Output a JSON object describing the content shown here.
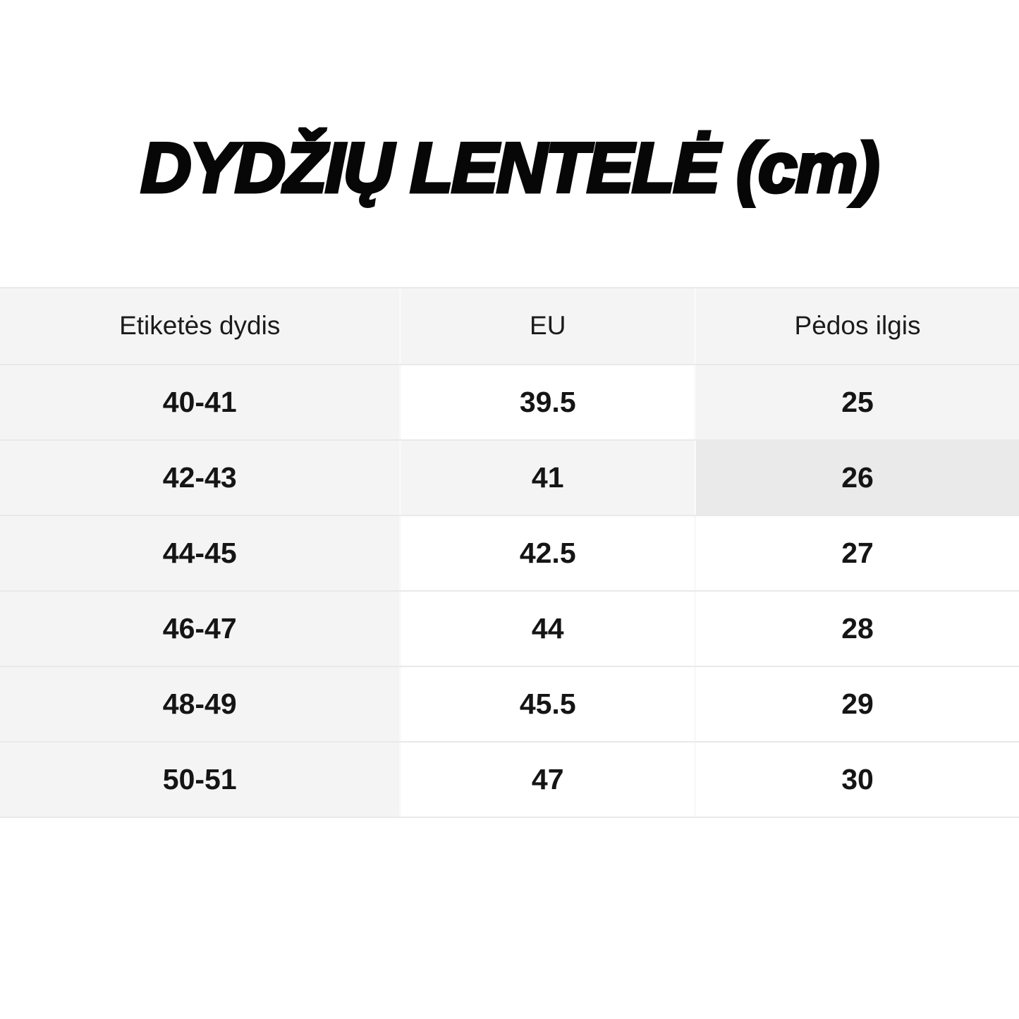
{
  "title": "DYDŽIŲ LENTELĖ (cm)",
  "colors": {
    "page_bg": "#ffffff",
    "header_bg": "#f4f4f4",
    "row_shade": "#f4f4f4",
    "highlight_cell_bg": "#eaeaea",
    "row_divider": "#e9e9e9",
    "column_divider": "#f9f9f9",
    "title_color": "#070707",
    "text_color": "#151515"
  },
  "table": {
    "headers": [
      "Etiketės dydis",
      "EU",
      "Pėdos ilgis"
    ],
    "rows": [
      [
        "40-41",
        "39.5",
        "25"
      ],
      [
        "42-43",
        "41",
        "26"
      ],
      [
        "44-45",
        "42.5",
        "27"
      ],
      [
        "46-47",
        "44",
        "28"
      ],
      [
        "48-49",
        "45.5",
        "29"
      ],
      [
        "50-51",
        "47",
        "30"
      ]
    ]
  },
  "chart_data": {
    "type": "table",
    "title": "DYDŽIŲ LENTELĖ (cm)",
    "columns": [
      "Etiketės dydis",
      "EU",
      "Pėdos ilgis"
    ],
    "rows": [
      {
        "label_size": "40-41",
        "eu": 39.5,
        "foot_length_cm": 25
      },
      {
        "label_size": "42-43",
        "eu": 41,
        "foot_length_cm": 26
      },
      {
        "label_size": "44-45",
        "eu": 42.5,
        "foot_length_cm": 27
      },
      {
        "label_size": "46-47",
        "eu": 44,
        "foot_length_cm": 28
      },
      {
        "label_size": "48-49",
        "eu": 45.5,
        "foot_length_cm": 29
      },
      {
        "label_size": "50-51",
        "eu": 47,
        "foot_length_cm": 30
      }
    ],
    "highlighted_cell": {
      "row": "42-43",
      "column": "Pėdos ilgis",
      "value": 26
    }
  }
}
